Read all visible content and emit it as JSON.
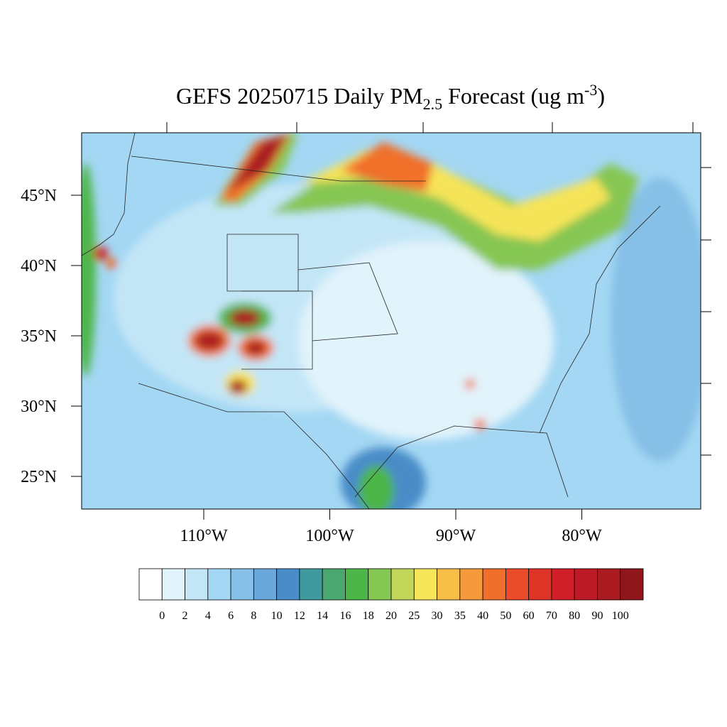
{
  "title": {
    "main": "GEFS 20250715 Daily PM",
    "sub": "2.5",
    "rest": " Forecast (ug m",
    "sup": "-3",
    "end": ")"
  },
  "latitudes": [
    {
      "value": 45,
      "label": "45°N"
    },
    {
      "value": 40,
      "label": "40°N"
    },
    {
      "value": 35,
      "label": "35°N"
    },
    {
      "value": 30,
      "label": "30°N"
    },
    {
      "value": 25,
      "label": "25°N"
    }
  ],
  "longitudes": [
    {
      "value": -110,
      "label": "110°W"
    },
    {
      "value": -100,
      "label": "100°W"
    },
    {
      "value": -90,
      "label": "90°W"
    },
    {
      "value": -80,
      "label": "80°W"
    }
  ],
  "colorbar": {
    "labels": [
      0,
      2,
      4,
      6,
      8,
      10,
      12,
      14,
      16,
      18,
      20,
      25,
      30,
      35,
      40,
      50,
      60,
      70,
      80,
      90,
      100
    ],
    "colors": [
      "#ffffff",
      "#e1f3fb",
      "#c3e6f7",
      "#a3d7f3",
      "#86c0e6",
      "#6aa8dc",
      "#4a8cc8",
      "#3f9aa0",
      "#4aa76f",
      "#4db648",
      "#86c653",
      "#c2d65a",
      "#f6e459",
      "#f7be48",
      "#f59a3c",
      "#f16f2c",
      "#e94b2b",
      "#de3427",
      "#d01f29",
      "#bc1b25",
      "#a91a21",
      "#8f161b"
    ]
  }
}
